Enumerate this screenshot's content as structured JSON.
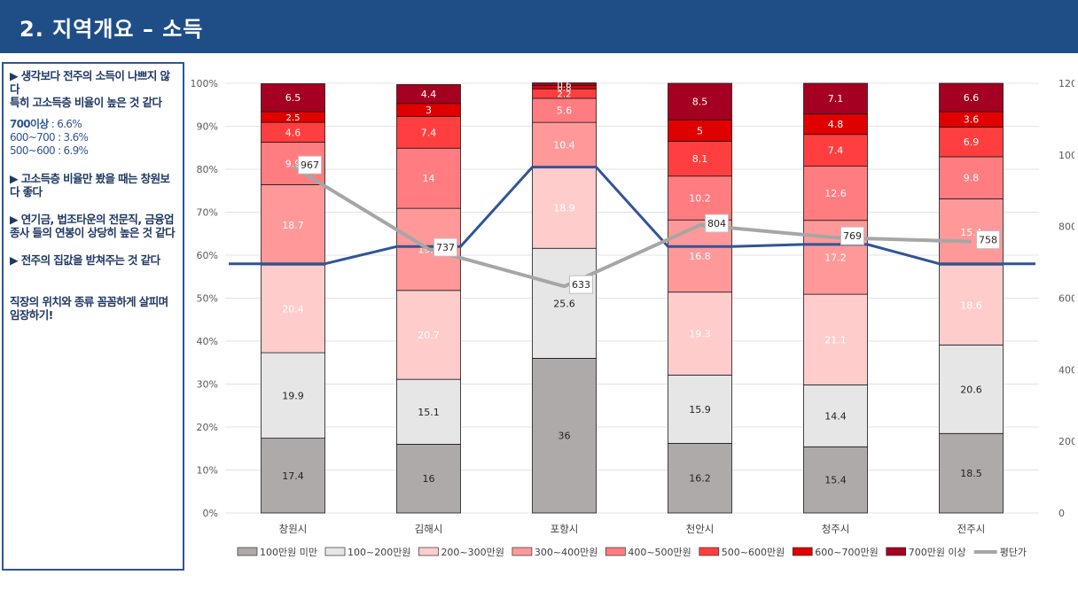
{
  "header": {
    "title": "2. 지역개요 – 소득"
  },
  "sidebar": {
    "p1_line1": "▶ 생각보다 전주의 소득이 나쁘지 않다",
    "p1_line2": "특히 고소득층 비율이 높은 것 같다",
    "stat1_label": "700이상",
    "stat1_value": " : 6.6%",
    "stat2": "600~700 : 3.6%",
    "stat3": "500~600 : 6.9%",
    "p2": "▶ 고소득층 비율만 봤을 때는 창원보다 좋다",
    "p3": "▶ 연기금, 법조타운의 전문직, 금융업종사 들의 연봉이 상당히 높은 것 같다",
    "p4": "▶ 전주의 집값을 받쳐주는 것 같다",
    "p5": "직장의 위치와 종류 꼼꼼하게 살피며 임장하기!"
  },
  "chart_data": {
    "type": "bar",
    "stacked": true,
    "categories": [
      "창원시",
      "김해시",
      "포항시",
      "천안시",
      "청주시",
      "전주시"
    ],
    "y_left": {
      "min": 0,
      "max": 100,
      "step": 10,
      "unit": "%"
    },
    "y_right": {
      "min": 0,
      "max": 1200,
      "step": 200
    },
    "series": [
      {
        "name": "100만원 미만",
        "color": "#aeaaaa",
        "label_color": "#222222",
        "values": [
          17.4,
          16,
          36,
          16.2,
          15.4,
          18.5
        ]
      },
      {
        "name": "100~200만원",
        "color": "#e7e6e6",
        "label_color": "#222222",
        "values": [
          19.9,
          15.1,
          25.6,
          15.9,
          14.4,
          20.6
        ]
      },
      {
        "name": "200~300만원",
        "color": "#ffcccc",
        "label_color": "#ffffff",
        "values": [
          20.4,
          20.7,
          18.9,
          19.3,
          21.1,
          18.6
        ]
      },
      {
        "name": "300~400만원",
        "color": "#ff9999",
        "label_color": "#ffffff",
        "values": [
          18.7,
          19.1,
          10.4,
          16.8,
          17.2,
          15.4
        ]
      },
      {
        "name": "400~500만원",
        "color": "#ff7c80",
        "label_color": "#ffffff",
        "values": [
          9.9,
          14,
          5.6,
          10.2,
          12.6,
          9.8
        ]
      },
      {
        "name": "500~600만원",
        "color": "#ff3f3f",
        "label_color": "#ffffff",
        "values": [
          4.6,
          7.4,
          2.2,
          8.1,
          7.4,
          6.9
        ]
      },
      {
        "name": "600~700만원",
        "color": "#e00000",
        "label_color": "#ffffff",
        "values": [
          2.5,
          3,
          0.8,
          5,
          4.8,
          3.6
        ]
      },
      {
        "name": "700만원 이상",
        "color": "#a50021",
        "label_color": "#ffffff",
        "values": [
          6.5,
          4.4,
          0.6,
          8.5,
          7.1,
          6.6
        ]
      }
    ],
    "line_price": {
      "name": "평단가",
      "color": "#a6a6a6",
      "values": [
        967,
        737,
        633,
        804,
        769,
        758
      ]
    },
    "line_share": {
      "color": "#2f5597",
      "values": [
        58,
        62,
        80.5,
        62,
        62.5,
        58
      ]
    },
    "legend_position": "bottom",
    "grid": true
  }
}
